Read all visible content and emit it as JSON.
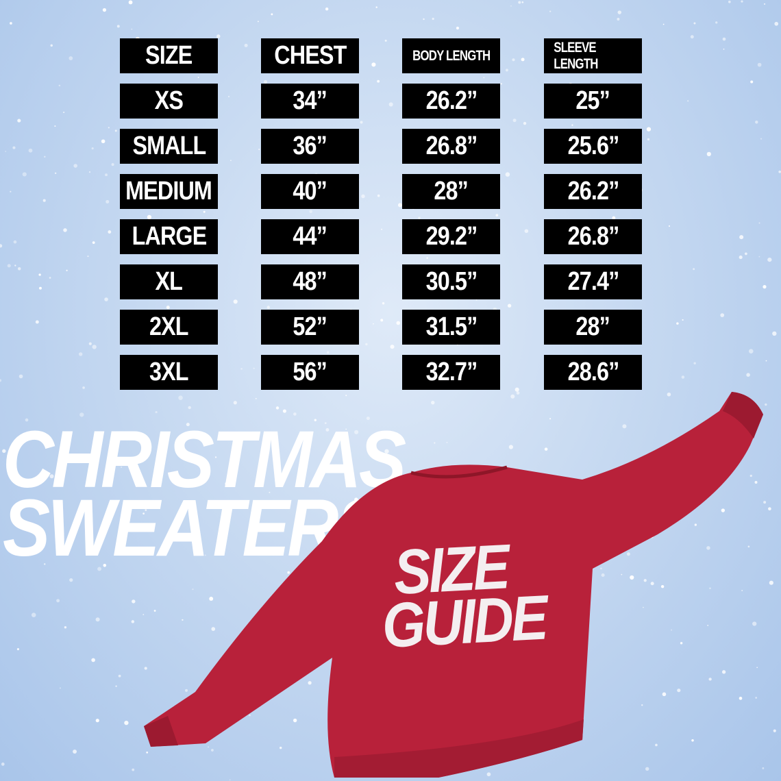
{
  "title": {
    "line1": "CHRISTMAS",
    "line2": "SWEATERS"
  },
  "badge": {
    "line1": "SIZE",
    "line2": "GUIDE"
  },
  "colors": {
    "background": "#c6d9f1",
    "cell": "#000000",
    "sweater": "#b8213a",
    "text": "#ffffff"
  },
  "table": {
    "headers": [
      "SIZE",
      "CHEST",
      "BODY LENGTH",
      "SLEEVE LENGTH"
    ],
    "rows": [
      [
        "XS",
        "34”",
        "26.2”",
        "25”"
      ],
      [
        "SMALL",
        "36”",
        "26.8”",
        "25.6”"
      ],
      [
        "MEDIUM",
        "40”",
        "28”",
        "26.2”"
      ],
      [
        "LARGE",
        "44”",
        "29.2”",
        "26.8”"
      ],
      [
        "XL",
        "48”",
        "30.5”",
        "27.4”"
      ],
      [
        "2XL",
        "52”",
        "31.5”",
        "28”"
      ],
      [
        "3XL",
        "56”",
        "32.7”",
        "28.6”"
      ]
    ]
  }
}
